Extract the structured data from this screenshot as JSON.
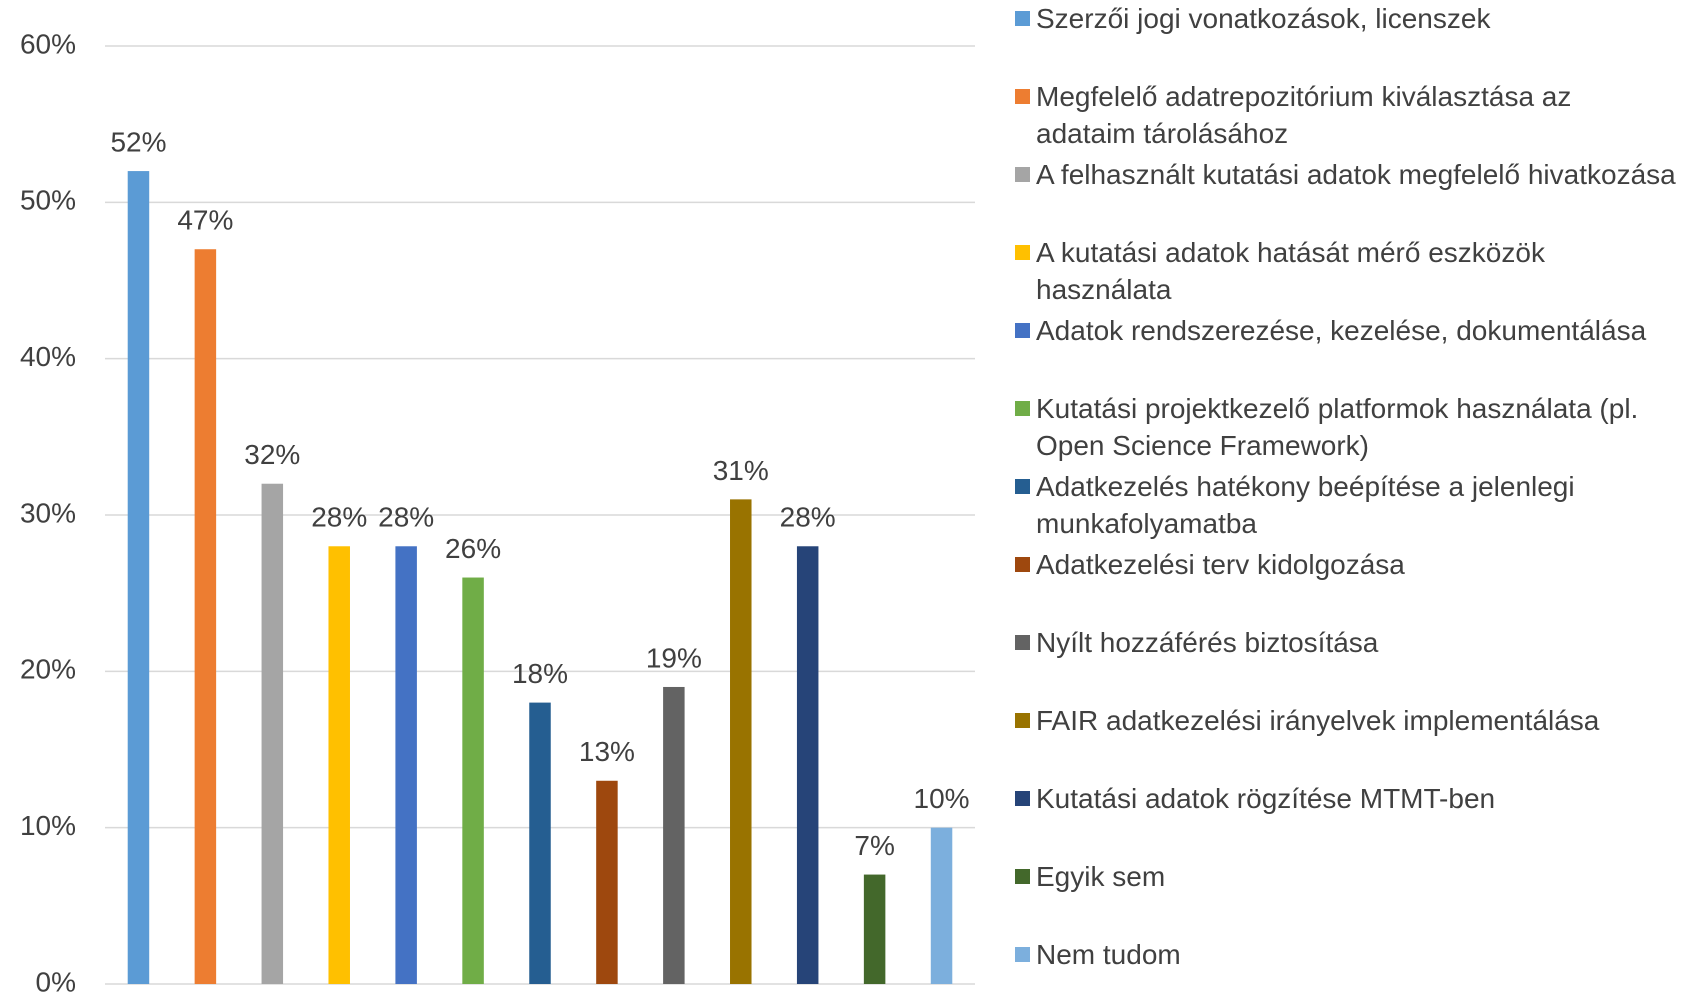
{
  "chart_data": {
    "type": "bar",
    "series": [
      {
        "name": "Szerzői jogi vonatkozások, licenszek",
        "color": "#5b9bd5",
        "values": [
          52
        ],
        "value_labels": [
          "52%"
        ]
      },
      {
        "name": "Megfelelő adatrepozitórium kiválasztása az adataim tárolásához",
        "color": "#ed7d31",
        "values": [
          47
        ],
        "value_labels": [
          "47%"
        ]
      },
      {
        "name": "A felhasznált kutatási adatok megfelelő hivatkozása",
        "color": "#a5a5a5",
        "values": [
          32
        ],
        "value_labels": [
          "32%"
        ]
      },
      {
        "name": "A kutatási adatok hatását mérő eszközök használata",
        "color": "#ffc000",
        "values": [
          28
        ],
        "value_labels": [
          "28%"
        ]
      },
      {
        "name": "Adatok rendszerezése, kezelése, dokumentálása",
        "color": "#4472c4",
        "values": [
          28
        ],
        "value_labels": [
          "28%"
        ]
      },
      {
        "name": "Kutatási projektkezelő platformok használata (pl. Open Science Framework)",
        "color": "#70ad47",
        "values": [
          26
        ],
        "value_labels": [
          "26%"
        ]
      },
      {
        "name": "Adatkezelés hatékony beépítése a jelenlegi munkafolyamatba",
        "color": "#255e91",
        "values": [
          18
        ],
        "value_labels": [
          "18%"
        ]
      },
      {
        "name": "Adatkezelési terv kidolgozása",
        "color": "#9e480e",
        "values": [
          13
        ],
        "value_labels": [
          "13%"
        ]
      },
      {
        "name": "Nyílt hozzáférés biztosítása",
        "color": "#636363",
        "values": [
          19
        ],
        "value_labels": [
          "19%"
        ]
      },
      {
        "name": "FAIR adatkezelési irányelvek implementálása",
        "color": "#997300",
        "values": [
          31
        ],
        "value_labels": [
          "31%"
        ]
      },
      {
        "name": "Kutatási adatok rögzítése MTMT-ben",
        "color": "#264478",
        "values": [
          28
        ],
        "value_labels": [
          "28%"
        ]
      },
      {
        "name": "Egyik sem",
        "color": "#43682b",
        "values": [
          7
        ],
        "value_labels": [
          "7%"
        ]
      },
      {
        "name": "Nem tudom",
        "color": "#7cafdd",
        "values": [
          10
        ],
        "value_labels": [
          "10%"
        ]
      }
    ],
    "ylim": [
      0,
      60
    ],
    "yticks": [
      {
        "value": 0,
        "label": "0%"
      },
      {
        "value": 10,
        "label": "10%"
      },
      {
        "value": 20,
        "label": "20%"
      },
      {
        "value": 30,
        "label": "30%"
      },
      {
        "value": 40,
        "label": "40%"
      },
      {
        "value": 50,
        "label": "50%"
      },
      {
        "value": 60,
        "label": "60%"
      }
    ],
    "grid": true,
    "legend": "right"
  }
}
